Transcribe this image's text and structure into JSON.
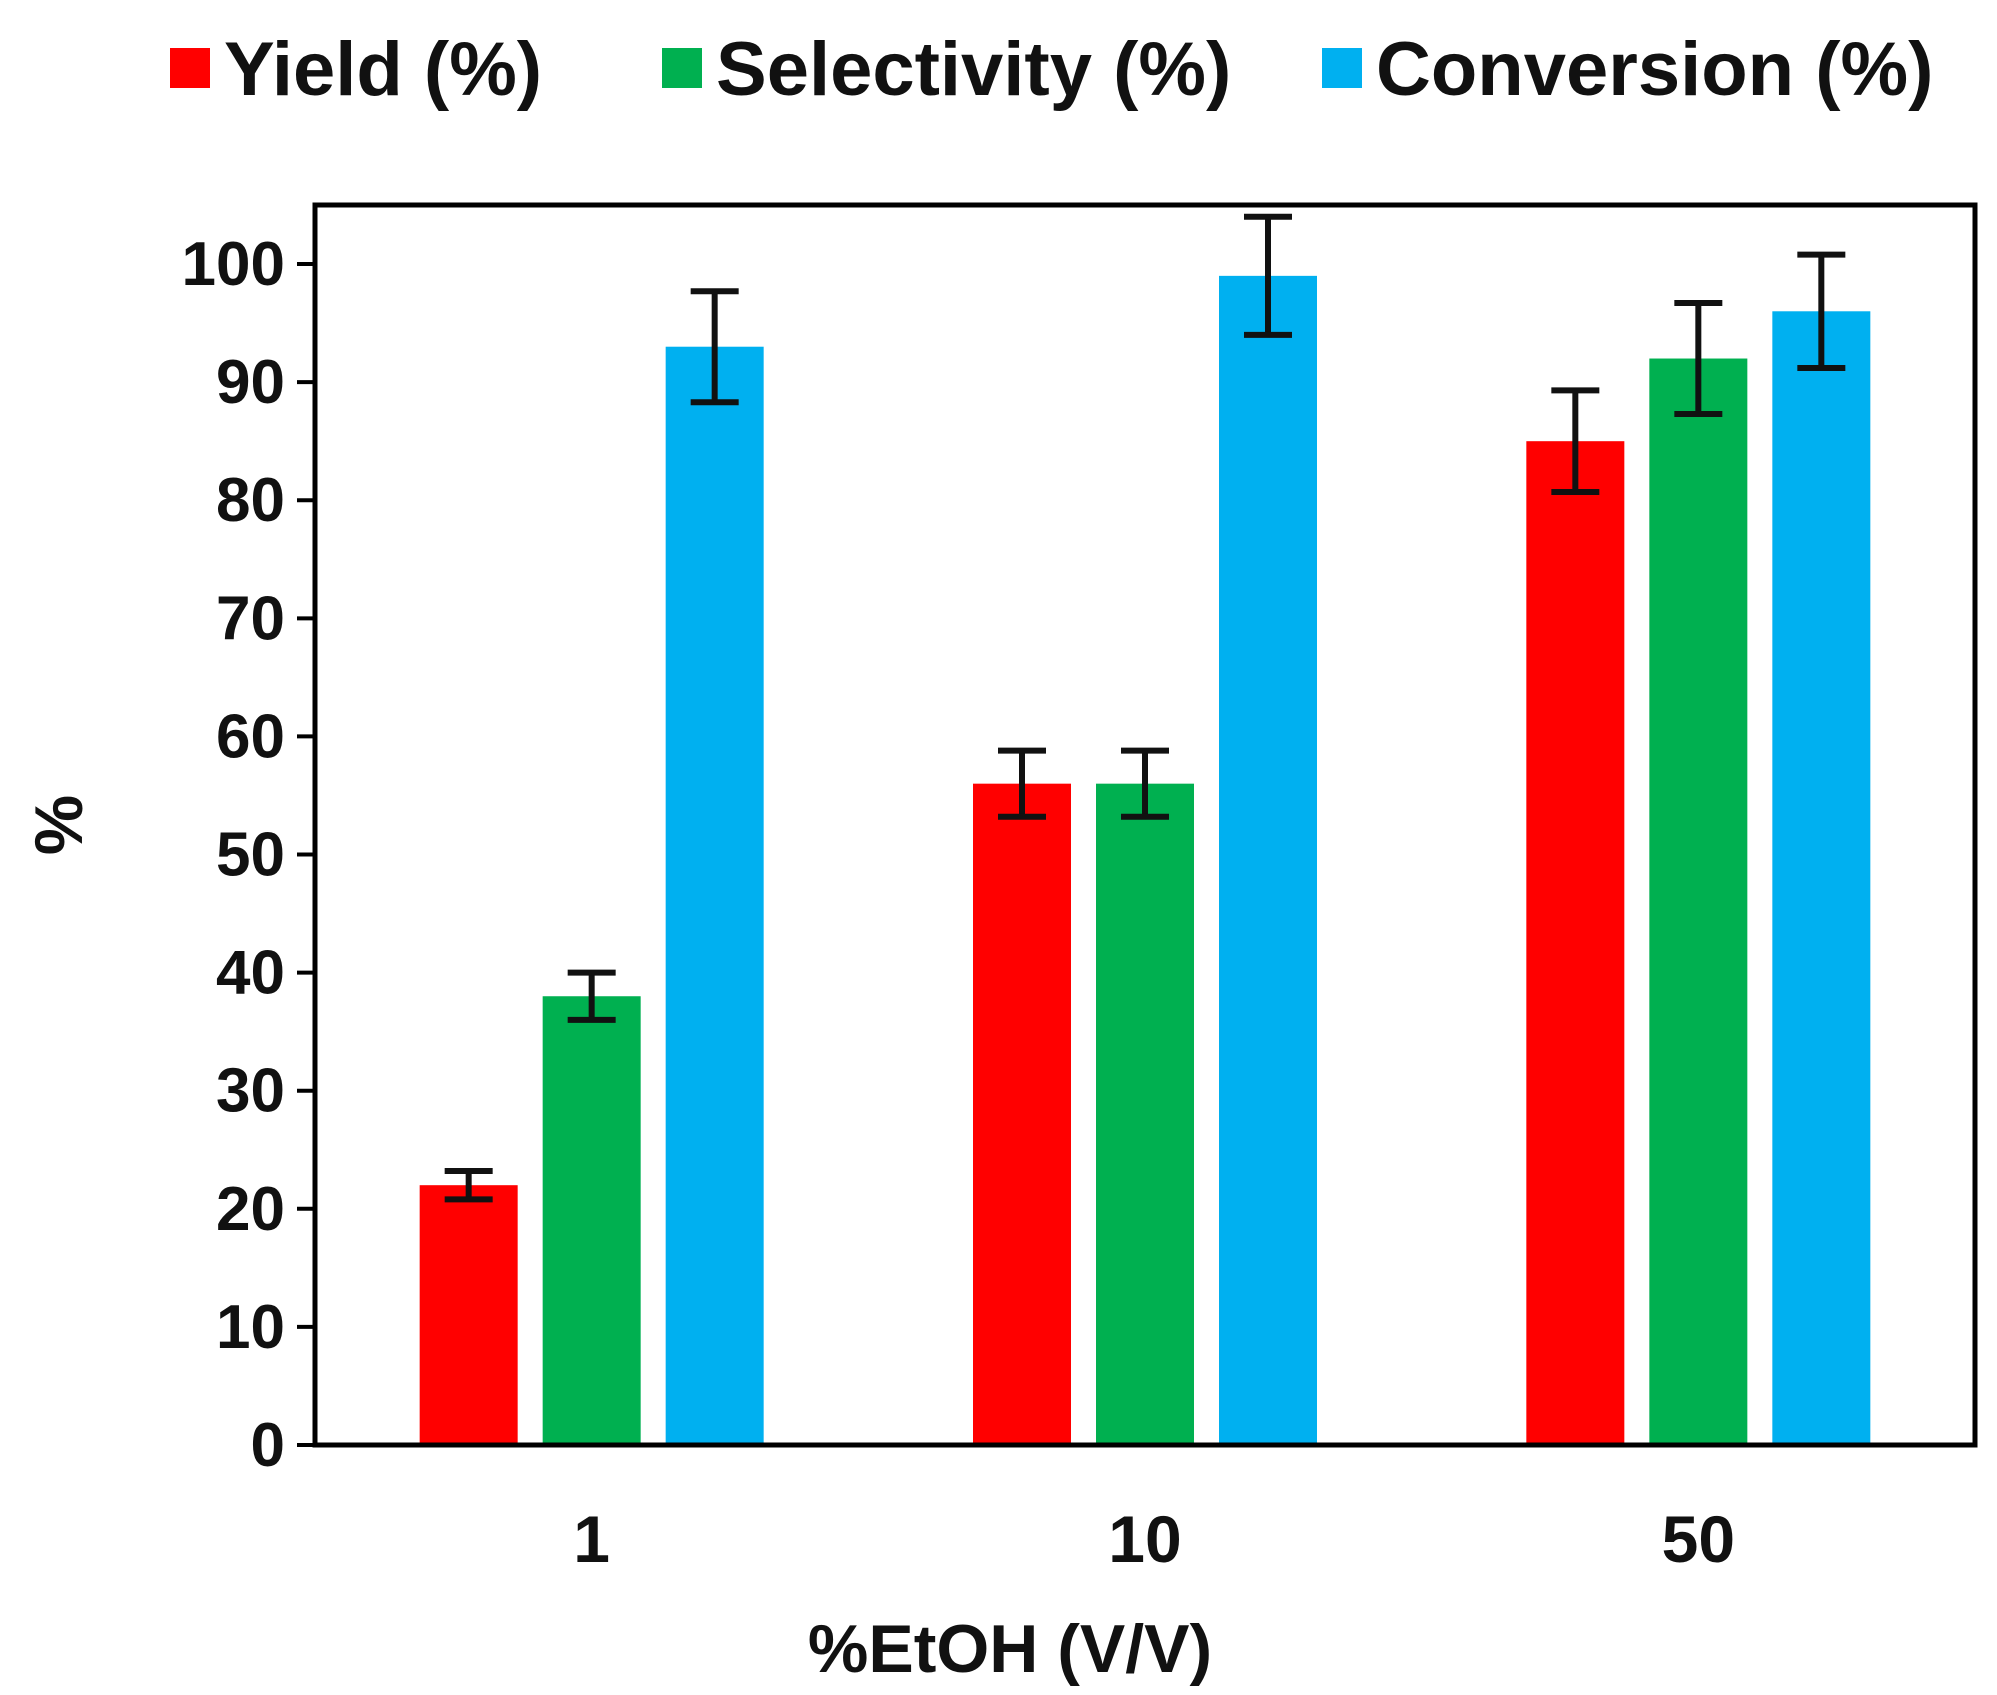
{
  "chart_data": {
    "type": "bar",
    "title": "",
    "xlabel": "%EtOH (V/V)",
    "ylabel": "%",
    "categories": [
      "1",
      "10",
      "50"
    ],
    "ylim": [
      0,
      105
    ],
    "yticks": [
      0,
      10,
      20,
      30,
      40,
      50,
      60,
      70,
      80,
      90,
      100
    ],
    "legend_position": "top",
    "grid": false,
    "series": [
      {
        "name": "Yield (%)",
        "color": "#ff0000",
        "values": [
          22,
          56,
          85
        ],
        "errors": [
          1.2,
          2.8,
          4.3
        ]
      },
      {
        "name": "Selectivity (%)",
        "color": "#00b050",
        "values": [
          38,
          56,
          92
        ],
        "errors": [
          2.0,
          2.8,
          4.7
        ]
      },
      {
        "name": "Conversion (%)",
        "color": "#00b0f0",
        "values": [
          93,
          99,
          96
        ],
        "errors": [
          4.7,
          5.0,
          4.8
        ]
      }
    ]
  }
}
